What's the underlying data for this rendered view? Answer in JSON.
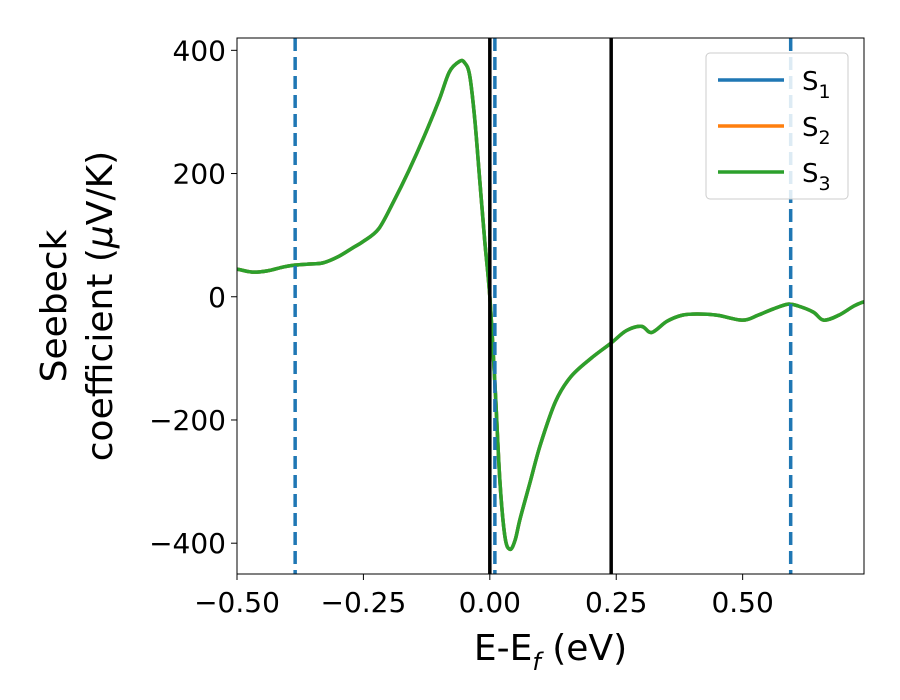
{
  "chart_data": {
    "type": "line",
    "xlabel": "E-E_f (eV)",
    "xlabel_main": "E-E",
    "xlabel_sub": "f",
    "xlabel_tail": " (eV)",
    "ylabel": "Seebeck coefficient (μV/K)",
    "ylabel_line1": "Seebeck",
    "ylabel_line2_a": "coefficient  (",
    "ylabel_line2_mu": "μ",
    "ylabel_line2_b": "V/K)",
    "xlim": [
      -0.5,
      0.74
    ],
    "ylim": [
      -450,
      420
    ],
    "xticks": [
      -0.5,
      -0.25,
      0.0,
      0.25,
      0.5
    ],
    "xtick_labels": [
      "−0.50",
      "−0.25",
      "0.00",
      "0.25",
      "0.50"
    ],
    "yticks": [
      -400,
      -200,
      0,
      200,
      400
    ],
    "ytick_labels": [
      "−400",
      "−200",
      "0",
      "200",
      "400"
    ],
    "legend_position": "top-right",
    "series": [
      {
        "name": "S",
        "subscript": "1",
        "color": "#1f77b4",
        "x": [
          -0.5,
          -0.47,
          -0.44,
          -0.41,
          -0.39,
          -0.36,
          -0.33,
          -0.3,
          -0.27,
          -0.25,
          -0.22,
          -0.19,
          -0.16,
          -0.13,
          -0.1,
          -0.08,
          -0.06,
          -0.05,
          -0.04,
          -0.03,
          -0.02,
          -0.01,
          0.0,
          0.01,
          0.02,
          0.03,
          0.04,
          0.05,
          0.06,
          0.08,
          0.1,
          0.13,
          0.16,
          0.2,
          0.24,
          0.27,
          0.3,
          0.32,
          0.35,
          0.38,
          0.41,
          0.45,
          0.5,
          0.53,
          0.56,
          0.59,
          0.61,
          0.64,
          0.66,
          0.69,
          0.72,
          0.74
        ],
        "values": [
          45,
          40,
          42,
          48,
          51,
          53,
          55,
          65,
          80,
          90,
          110,
          155,
          205,
          260,
          320,
          365,
          382,
          380,
          360,
          290,
          190,
          90,
          0,
          -140,
          -300,
          -390,
          -410,
          -395,
          -360,
          -300,
          -240,
          -170,
          -130,
          -100,
          -75,
          -55,
          -48,
          -58,
          -40,
          -30,
          -28,
          -30,
          -38,
          -30,
          -20,
          -12,
          -15,
          -25,
          -38,
          -30,
          -15,
          -8
        ]
      },
      {
        "name": "S",
        "subscript": "2",
        "color": "#ff7f0e",
        "x": [
          -0.5,
          -0.47,
          -0.44,
          -0.41,
          -0.39,
          -0.36,
          -0.33,
          -0.3,
          -0.27,
          -0.25,
          -0.22,
          -0.19,
          -0.16,
          -0.13,
          -0.1,
          -0.08,
          -0.06,
          -0.05,
          -0.04,
          -0.03,
          -0.02,
          -0.01,
          0.0,
          0.01,
          0.02,
          0.03,
          0.04,
          0.05,
          0.06,
          0.08,
          0.1,
          0.13,
          0.16,
          0.2,
          0.24,
          0.27,
          0.3,
          0.32,
          0.35,
          0.38,
          0.41,
          0.45,
          0.5,
          0.53,
          0.56,
          0.59,
          0.61,
          0.64,
          0.66,
          0.69,
          0.72,
          0.74
        ],
        "values": [
          45,
          40,
          42,
          48,
          51,
          53,
          55,
          65,
          80,
          90,
          110,
          155,
          205,
          260,
          320,
          365,
          382,
          380,
          360,
          290,
          190,
          90,
          0,
          -140,
          -300,
          -390,
          -410,
          -395,
          -360,
          -300,
          -240,
          -170,
          -130,
          -100,
          -75,
          -55,
          -48,
          -58,
          -40,
          -30,
          -28,
          -30,
          -38,
          -30,
          -20,
          -12,
          -15,
          -25,
          -38,
          -30,
          -15,
          -8
        ]
      },
      {
        "name": "S",
        "subscript": "3",
        "color": "#2ca02c",
        "x": [
          -0.5,
          -0.47,
          -0.44,
          -0.41,
          -0.39,
          -0.36,
          -0.33,
          -0.3,
          -0.27,
          -0.25,
          -0.22,
          -0.19,
          -0.16,
          -0.13,
          -0.1,
          -0.08,
          -0.06,
          -0.05,
          -0.04,
          -0.03,
          -0.02,
          -0.01,
          0.0,
          0.01,
          0.02,
          0.03,
          0.04,
          0.05,
          0.06,
          0.08,
          0.1,
          0.13,
          0.16,
          0.2,
          0.24,
          0.27,
          0.3,
          0.32,
          0.35,
          0.38,
          0.41,
          0.45,
          0.5,
          0.53,
          0.56,
          0.59,
          0.61,
          0.64,
          0.66,
          0.69,
          0.72,
          0.74
        ],
        "values": [
          45,
          40,
          42,
          48,
          51,
          53,
          55,
          65,
          80,
          90,
          110,
          155,
          205,
          260,
          320,
          365,
          382,
          380,
          360,
          290,
          190,
          90,
          0,
          -140,
          -300,
          -390,
          -410,
          -395,
          -360,
          -300,
          -240,
          -170,
          -130,
          -100,
          -75,
          -55,
          -48,
          -58,
          -40,
          -30,
          -28,
          -30,
          -38,
          -30,
          -20,
          -12,
          -15,
          -25,
          -38,
          -30,
          -15,
          -8
        ]
      }
    ],
    "vlines": [
      {
        "x": -0.385,
        "style": "dashed",
        "color": "#1f77b4"
      },
      {
        "x": 0.01,
        "style": "dashed",
        "color": "#1f77b4"
      },
      {
        "x": 0.595,
        "style": "dashed",
        "color": "#1f77b4"
      },
      {
        "x": 0.0,
        "style": "solid",
        "color": "#000000"
      },
      {
        "x": 0.24,
        "style": "solid",
        "color": "#000000"
      }
    ]
  }
}
